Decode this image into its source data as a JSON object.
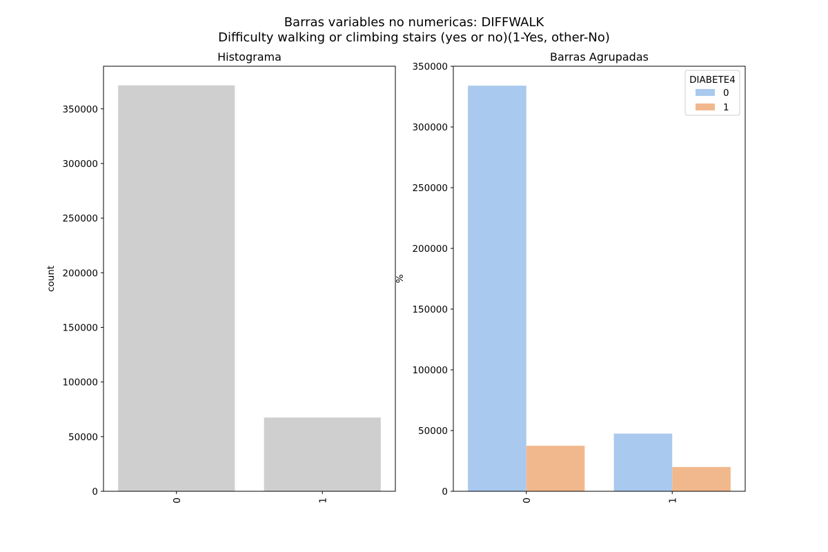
{
  "figure": {
    "title_line1": "Barras variables no numericas: DIFFWALK",
    "title_line2": "Difficulty walking or climbing stairs (yes or no)(1-Yes, other-No)"
  },
  "chart_data": [
    {
      "type": "bar",
      "title": "Histograma",
      "xlabel": "",
      "ylabel": "count",
      "categories": [
        "0",
        "1"
      ],
      "values": [
        371500,
        67500
      ],
      "ylim": [
        0,
        389000
      ],
      "yticks": [
        0,
        50000,
        100000,
        150000,
        200000,
        250000,
        300000,
        350000
      ],
      "ytick_labels": [
        "0",
        "50000",
        "100000",
        "150000",
        "200000",
        "250000",
        "300000",
        "350000"
      ],
      "color": "#cfcfcf",
      "grid": false
    },
    {
      "type": "bar",
      "title": "Barras Agrupadas",
      "xlabel": "",
      "ylabel": "%",
      "categories": [
        "0",
        "1"
      ],
      "series": [
        {
          "name": "0",
          "values": [
            334000,
            47500
          ],
          "color": "#a9c9ee"
        },
        {
          "name": "1",
          "values": [
            37500,
            20000
          ],
          "color": "#f2b88d"
        }
      ],
      "ylim": [
        0,
        350000
      ],
      "yticks": [
        0,
        50000,
        100000,
        150000,
        200000,
        250000,
        300000,
        350000
      ],
      "ytick_labels": [
        "0",
        "50000",
        "100000",
        "150000",
        "200000",
        "250000",
        "300000",
        "350000"
      ],
      "legend_title": "DIABETE4",
      "legend_position": "top-right",
      "grid": false
    }
  ]
}
